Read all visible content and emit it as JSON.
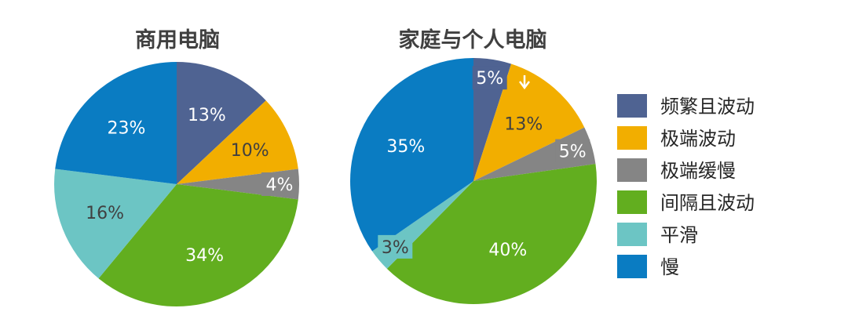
{
  "chart_data": [
    {
      "type": "pie",
      "title": "商用电脑",
      "slices": [
        {
          "label": "频繁且波动",
          "value": 13,
          "text": "13%"
        },
        {
          "label": "极端波动",
          "value": 10,
          "text": "10%"
        },
        {
          "label": "极端缓慢",
          "value": 4,
          "text": "4%"
        },
        {
          "label": "间隔且波动",
          "value": 34,
          "text": "34%"
        },
        {
          "label": "平滑",
          "value": 16,
          "text": "16%"
        },
        {
          "label": "慢",
          "value": 23,
          "text": "23%"
        }
      ]
    },
    {
      "type": "pie",
      "title": "家庭与个人电脑",
      "slices": [
        {
          "label": "频繁且波动",
          "value": 5,
          "text": "5%"
        },
        {
          "label": "极端波动",
          "value": 13,
          "text": "13%"
        },
        {
          "label": "极端缓慢",
          "value": 5,
          "text": "5%"
        },
        {
          "label": "间隔且波动",
          "value": 40,
          "text": "40%"
        },
        {
          "label": "平滑",
          "value": 3,
          "text": "3%"
        },
        {
          "label": "慢",
          "value": 35,
          "text": "35%"
        }
      ]
    }
  ],
  "legend": [
    {
      "label": "频繁且波动",
      "color": "#4f6392"
    },
    {
      "label": "极端波动",
      "color": "#f2ae00"
    },
    {
      "label": "极端缓慢",
      "color": "#858585"
    },
    {
      "label": "间隔且波动",
      "color": "#62ae1f"
    },
    {
      "label": "平滑",
      "color": "#6cc5c4"
    },
    {
      "label": "慢",
      "color": "#0a7cc2"
    }
  ]
}
